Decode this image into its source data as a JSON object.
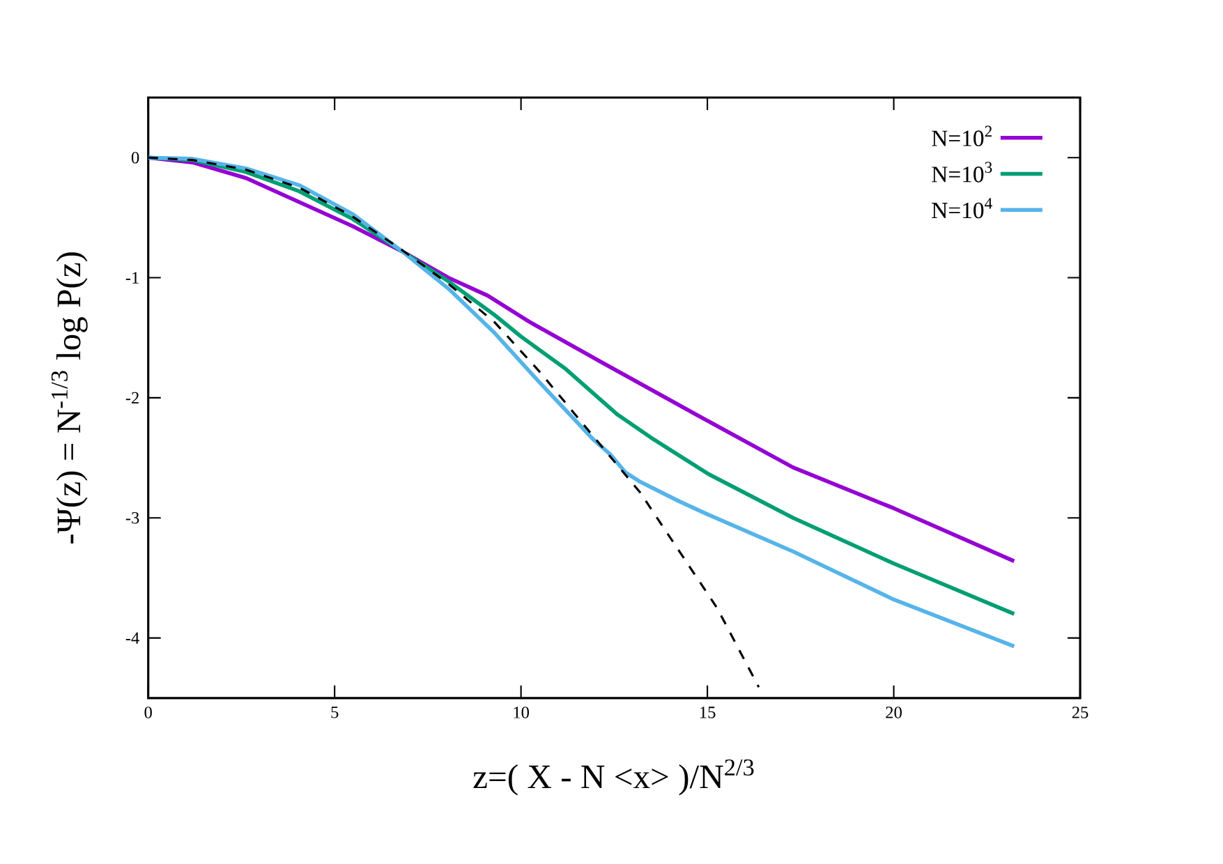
{
  "chart_data": {
    "type": "line",
    "xlabel": "z=( X - N <x> )/N$^{2/3}$",
    "ylabel": "-Ψ(z) = N$^{-1/3}$ log P(z)",
    "xlim": [
      0,
      25
    ],
    "ylim": [
      -4.5,
      0.5
    ],
    "xticks": [
      0,
      5,
      10,
      15,
      20,
      25
    ],
    "yticks": [
      -4,
      -3,
      -2,
      -1,
      0
    ],
    "grid": false,
    "legend": "top right",
    "marker": "none",
    "series": [
      {
        "name": "N=10$^{2}$",
        "color": "#9400d3",
        "x": [
          0,
          1.19,
          2.62,
          4.05,
          5.48,
          6.81,
          8.05,
          9.11,
          10.24,
          12.14,
          14.7,
          17.3,
          20,
          23.23
        ],
        "values": [
          0,
          -0.04,
          -0.17,
          -0.37,
          -0.57,
          -0.78,
          -1.0,
          -1.15,
          -1.37,
          -1.7,
          -2.14,
          -2.58,
          -2.92,
          -3.36
        ]
      },
      {
        "name": "N=10$^{3}$",
        "color": "#009e73",
        "x": [
          0,
          1.19,
          2.62,
          4.05,
          5.48,
          6.81,
          8.05,
          9.29,
          10,
          11.2,
          12.59,
          13.48,
          15,
          17.3,
          20,
          23.23
        ],
        "values": [
          0,
          -0.02,
          -0.12,
          -0.28,
          -0.51,
          -0.78,
          -1.03,
          -1.31,
          -1.49,
          -1.76,
          -2.14,
          -2.33,
          -2.63,
          -3.0,
          -3.38,
          -3.8
        ]
      },
      {
        "name": "N=10$^{4}$",
        "color": "#56b4e9",
        "x": [
          0,
          1.19,
          2.62,
          4.05,
          5.48,
          6.81,
          8.05,
          9.29,
          10.52,
          11.95,
          12.39,
          12.8,
          13.2,
          14.23,
          15,
          17.3,
          20,
          23.23
        ],
        "values": [
          0,
          -0.01,
          -0.09,
          -0.23,
          -0.47,
          -0.78,
          -1.09,
          -1.46,
          -1.88,
          -2.35,
          -2.47,
          -2.62,
          -2.7,
          -2.86,
          -2.97,
          -3.28,
          -3.68,
          -4.07
        ]
      },
      {
        "color": "#000000",
        "line_style": "dashed",
        "x": [
          0,
          1.19,
          2.62,
          4.05,
          5.48,
          6.81,
          8.05,
          9.29,
          10.52,
          11.67,
          13.2,
          14.23,
          15.26,
          16.38
        ],
        "values": [
          0,
          -0.02,
          -0.1,
          -0.25,
          -0.49,
          -0.77,
          -1.05,
          -1.37,
          -1.79,
          -2.22,
          -2.79,
          -3.27,
          -3.75,
          -4.41
        ]
      }
    ]
  }
}
